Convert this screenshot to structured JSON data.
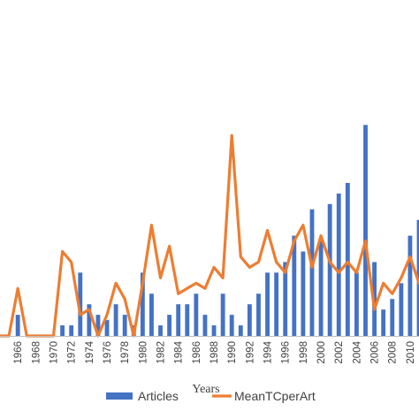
{
  "chart_data": {
    "type": "bar",
    "xlabel": "Years",
    "categories": [
      "1964",
      "1965",
      "1966",
      "1967",
      "1968",
      "1969",
      "1970",
      "1971",
      "1972",
      "1973",
      "1974",
      "1975",
      "1976",
      "1977",
      "1978",
      "1979",
      "1980",
      "1981",
      "1982",
      "1983",
      "1984",
      "1985",
      "1986",
      "1987",
      "1988",
      "1989",
      "1990",
      "1991",
      "1992",
      "1993",
      "1994",
      "1995",
      "1996",
      "1997",
      "1998",
      "1999",
      "2000",
      "2001",
      "2002",
      "2003",
      "2004",
      "2005",
      "2006",
      "2007",
      "2008",
      "2009",
      "2010",
      "2011"
    ],
    "tick_labels": [
      "1966",
      "1968",
      "1970",
      "1972",
      "1974",
      "1976",
      "1978",
      "1980",
      "1982",
      "1984",
      "1986",
      "1988",
      "1990",
      "1992",
      "1994",
      "1996",
      "1998",
      "2000",
      "2002",
      "2004",
      "2006",
      "2008",
      "2010"
    ],
    "ylim": [
      0,
      60
    ],
    "series": [
      {
        "name": "Articles",
        "kind": "bar",
        "color": "#4472c4",
        "values": [
          0,
          0,
          4,
          0,
          0,
          0,
          0,
          2,
          2,
          12,
          6,
          4,
          3,
          6,
          4,
          2,
          12,
          8,
          2,
          4,
          6,
          6,
          8,
          4,
          2,
          8,
          4,
          2,
          6,
          8,
          12,
          12,
          14,
          19,
          16,
          24,
          18,
          25,
          27,
          29,
          12,
          40,
          14,
          5,
          7,
          10,
          19,
          22
        ]
      },
      {
        "name": "MeanTCperArt",
        "kind": "line",
        "color": "#ed7d31",
        "values": [
          0,
          0,
          9,
          0,
          0,
          0,
          0,
          16,
          14,
          4,
          5,
          0,
          4,
          10,
          7,
          0,
          10,
          21,
          11,
          17,
          8,
          9,
          10,
          9,
          13,
          11,
          38,
          15,
          13,
          14,
          20,
          14,
          12,
          18,
          21,
          13,
          19,
          14,
          12,
          14,
          12,
          18,
          5,
          10,
          8,
          11,
          15,
          10
        ]
      }
    ],
    "legend": {
      "position": "bottom",
      "entries": [
        "Articles",
        "MeanTCperArt"
      ]
    },
    "grid": false
  }
}
